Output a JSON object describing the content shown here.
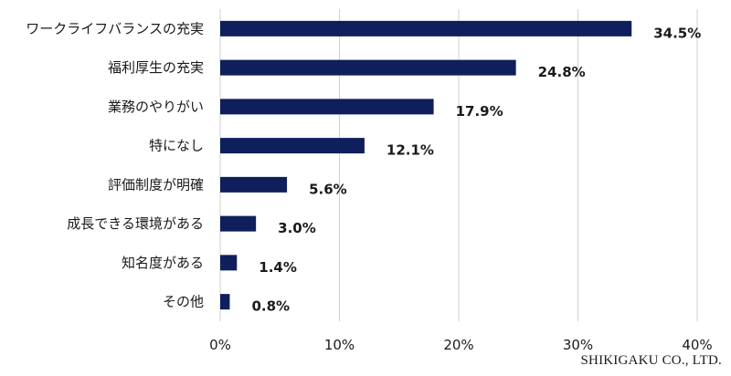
{
  "credit": "SHIKIGAKU CO., LTD.",
  "chart_data": {
    "type": "bar",
    "orientation": "horizontal",
    "categories": [
      "ワークライフバランスの充実",
      "福利厚生の充実",
      "業務のやりがい",
      "特になし",
      "評価制度が明確",
      "成長できる環境がある",
      "知名度がある",
      "その他"
    ],
    "values": [
      34.5,
      24.8,
      17.9,
      12.1,
      5.6,
      3.0,
      1.4,
      0.8
    ],
    "value_labels": [
      "34.5%",
      "24.8%",
      "17.9%",
      "12.1%",
      "5.6%",
      "3.0%",
      "1.4%",
      "0.8%"
    ],
    "xlim": [
      0,
      40
    ],
    "x_ticks": [
      0,
      10,
      20,
      30,
      40
    ],
    "x_tick_labels": [
      "0%",
      "10%",
      "20%",
      "30%",
      "40%"
    ],
    "grid": true,
    "bar_color": "#0f1f5c",
    "title": "",
    "xlabel": "",
    "ylabel": ""
  }
}
